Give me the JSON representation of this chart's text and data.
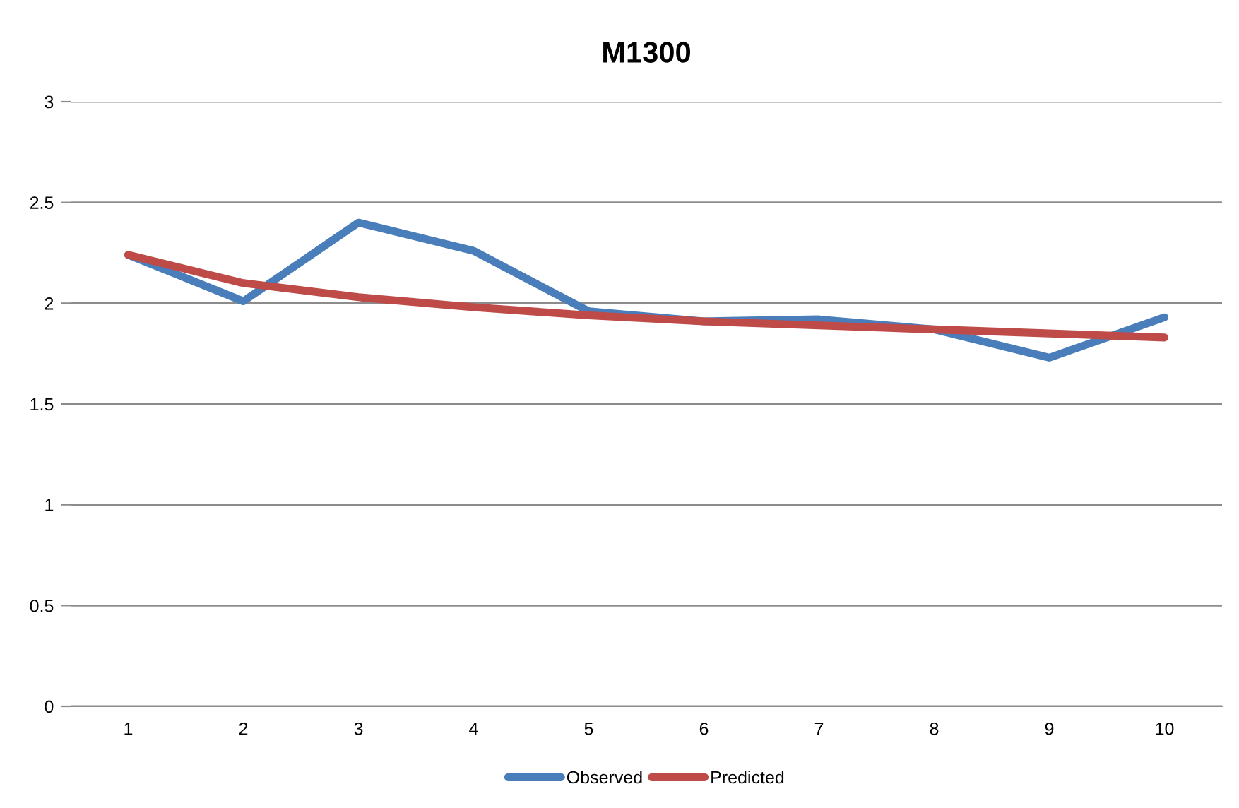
{
  "chart_data": {
    "type": "line",
    "title": "M1300",
    "categories": [
      "1",
      "2",
      "3",
      "4",
      "5",
      "6",
      "7",
      "8",
      "9",
      "10"
    ],
    "series": [
      {
        "name": "Observed",
        "color": "#4a7ebb",
        "values": [
          2.24,
          2.01,
          2.4,
          2.26,
          1.96,
          1.91,
          1.92,
          1.87,
          1.73,
          1.93
        ]
      },
      {
        "name": "Predicted",
        "color": "#be4b48",
        "values": [
          2.24,
          2.1,
          2.03,
          1.98,
          1.94,
          1.91,
          1.89,
          1.87,
          1.85,
          1.83
        ]
      }
    ],
    "ylim": [
      0,
      3
    ],
    "yticks": [
      0,
      0.5,
      1,
      1.5,
      2,
      2.5,
      3
    ],
    "grid": "y",
    "legend": "bottom",
    "marker": "none",
    "line_style": "solid"
  }
}
